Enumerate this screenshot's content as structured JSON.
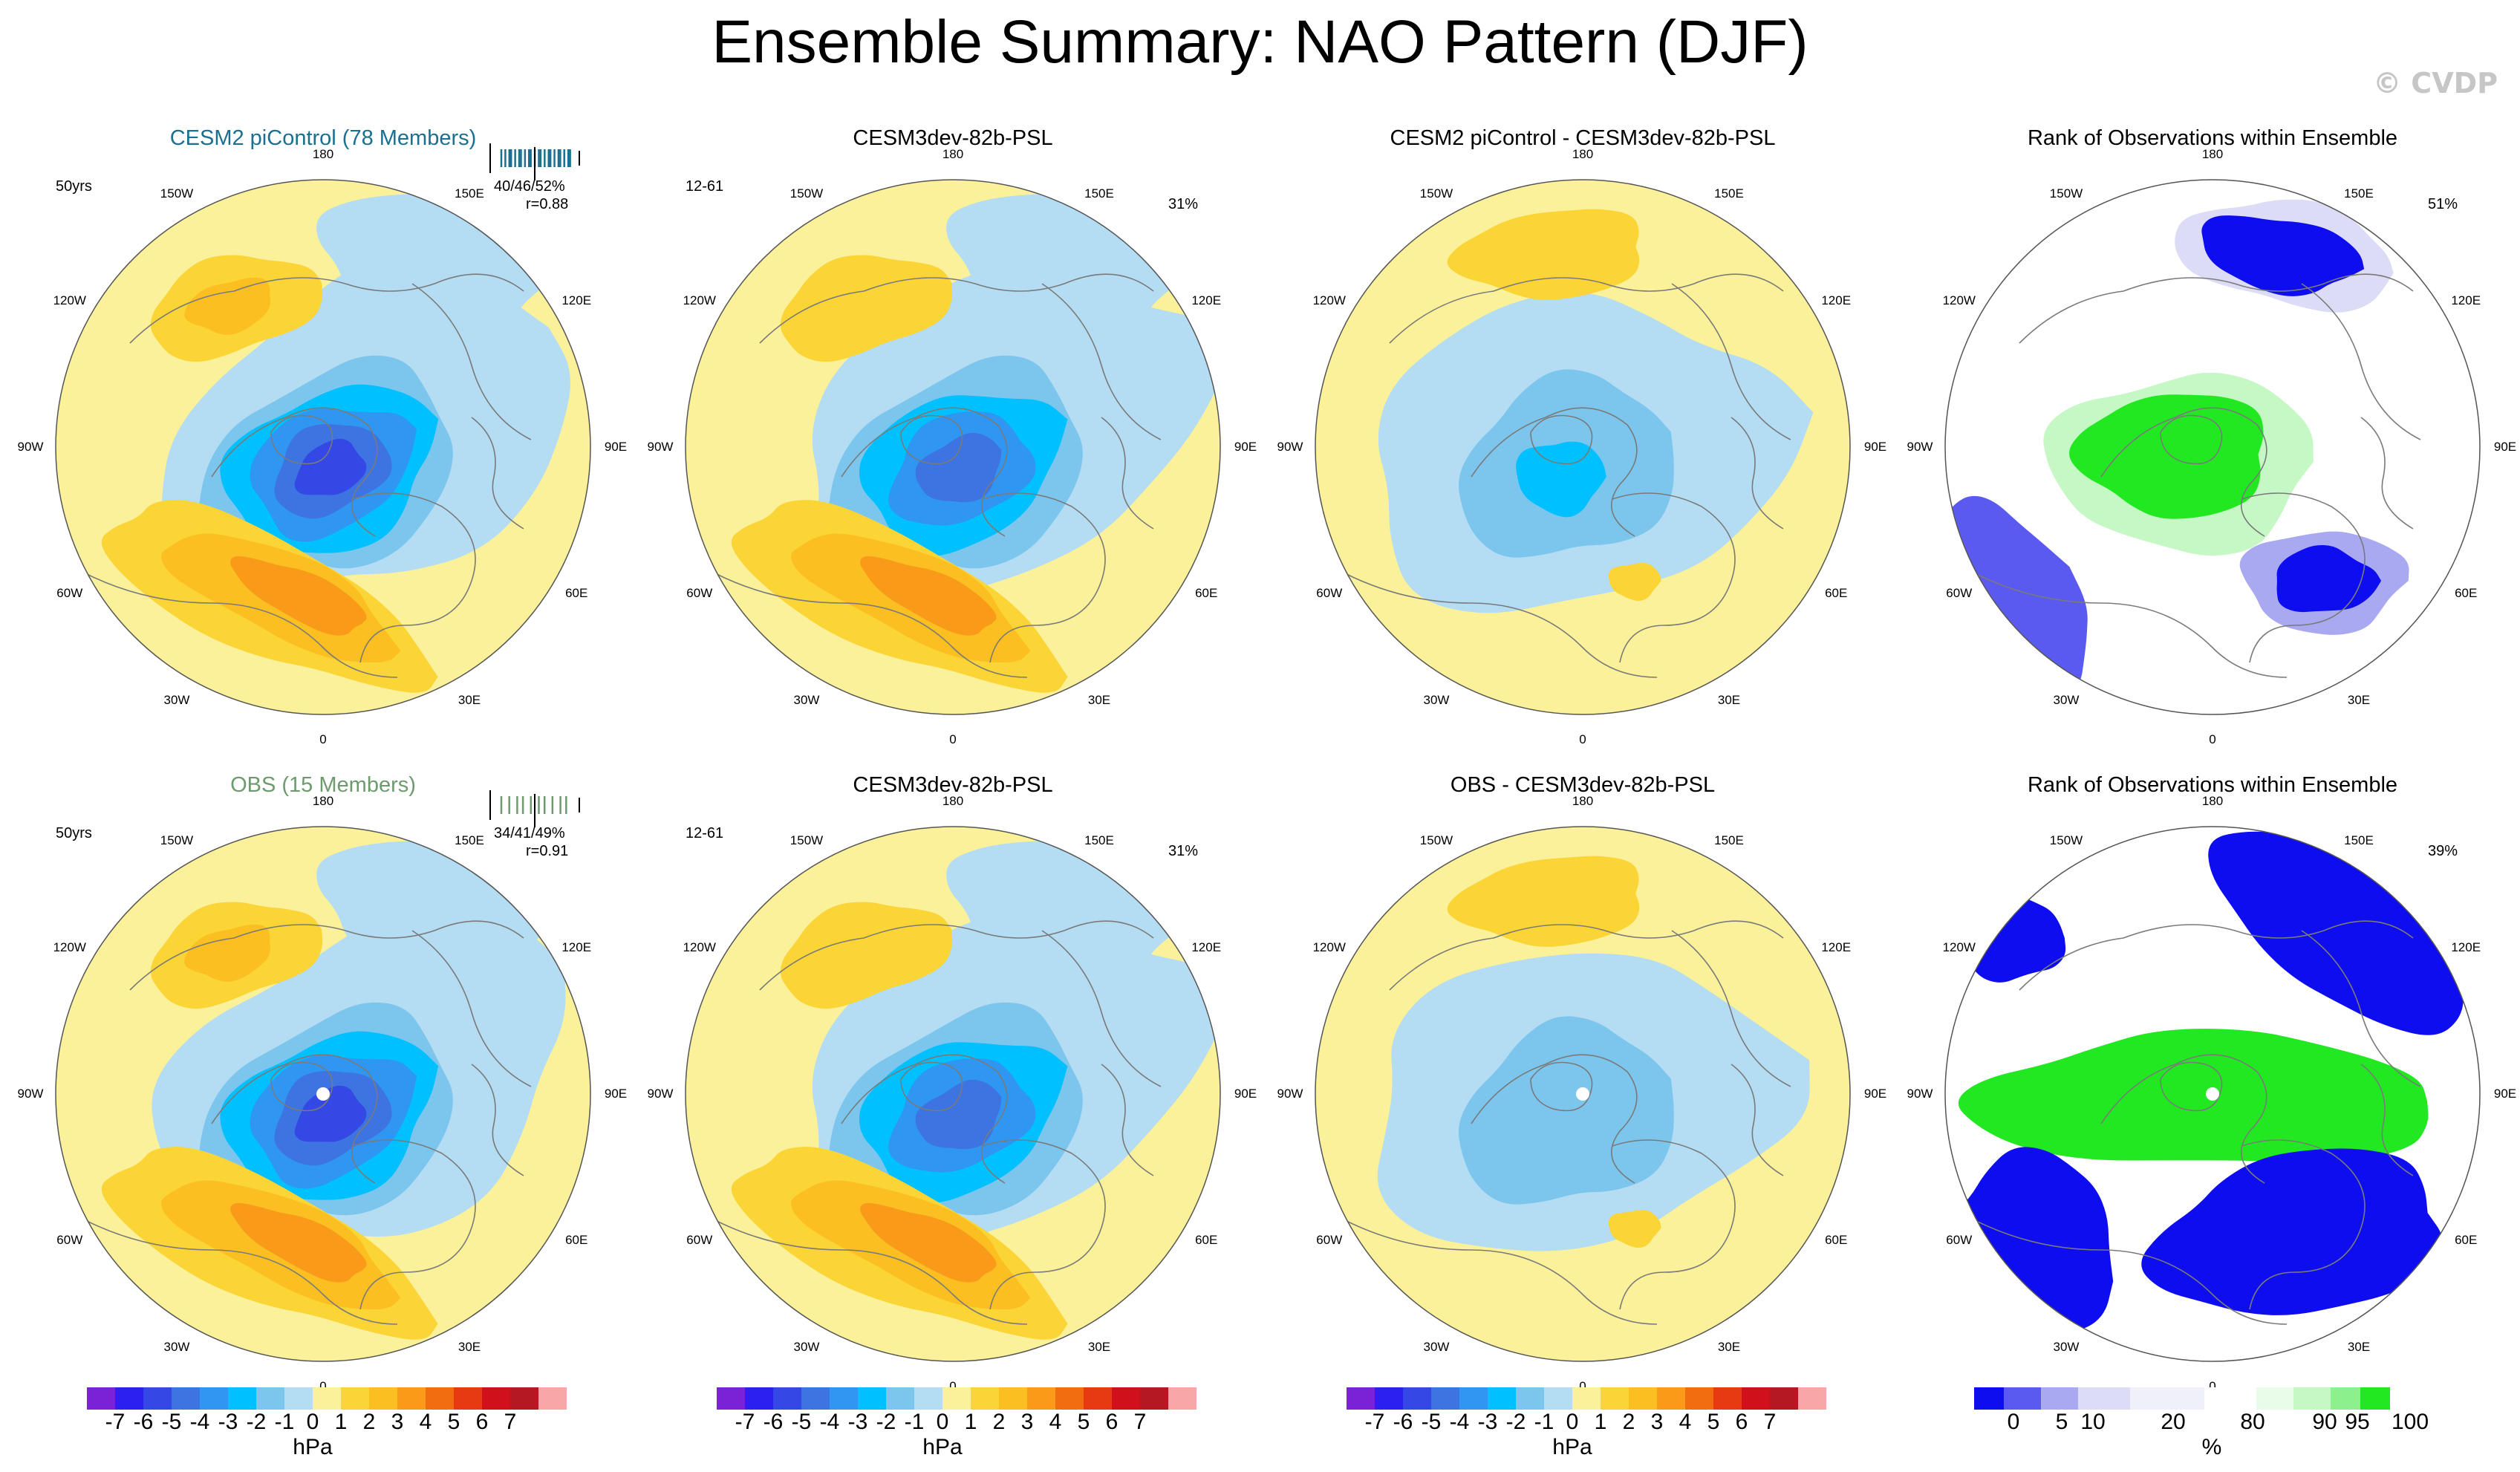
{
  "title": "Ensemble Summary: NAO Pattern (DJF)",
  "credit": "© CVDP",
  "colors": {
    "obs_title": "#6e9b6e",
    "model_title": "#1b6f8f",
    "pressure_scale": [
      "#7c22d6",
      "#2c20f0",
      "#3448e6",
      "#3d74e2",
      "#2f97f2",
      "#00c0ff",
      "#7cc6ee",
      "#b4dcf2",
      "#fbf19a",
      "#fbd435",
      "#fbbf22",
      "#f99a19",
      "#f26c10",
      "#e83a12",
      "#d0101a",
      "#b51723",
      "#f7a7a8"
    ],
    "rank_scale": [
      "#0d0df0",
      "#5a5af0",
      "#a9a9f2",
      "#dcdcf6",
      "#f0f0fb",
      "#ffffff",
      "#e9fbe9",
      "#c6f8c6",
      "#8cf08c",
      "#21e821"
    ]
  },
  "icon": "credit-copyright-icon",
  "colorbar_labels": [
    "-7",
    "-6",
    "-5",
    "-4",
    "-3",
    "-2",
    "-1",
    "0",
    "1",
    "2",
    "3",
    "4",
    "5",
    "6",
    "7"
  ],
  "colorbar_unit": "hPa",
  "rank_labels": [
    "0",
    "5",
    "10",
    "20",
    "80",
    "90",
    "95",
    "100"
  ],
  "rank_unit": "%",
  "lon_labels": [
    "180",
    "150E",
    "120E",
    "90E",
    "60E",
    "30E",
    "0",
    "30W",
    "60W",
    "90W",
    "120W",
    "150W"
  ],
  "panels": [
    {
      "id": "r1c1",
      "title": "CESM2 piControl (78 Members)",
      "title_color": "model",
      "left_note": "50yrs",
      "right_note": "",
      "stats": "40/46/52%",
      "r_value": "r=0.88",
      "bars": "model",
      "kind": "pattern",
      "strength": 1.0,
      "obs_dot": false
    },
    {
      "id": "r1c2",
      "title": "CESM3dev-82b-PSL",
      "title_color": "black",
      "left_note": "12-61",
      "right_note": "31%",
      "stats": "",
      "r_value": "",
      "bars": "",
      "kind": "pattern",
      "strength": 0.85,
      "obs_dot": false
    },
    {
      "id": "r1c3",
      "title": "CESM2 piControl - CESM3dev-82b-PSL",
      "title_color": "black",
      "left_note": "",
      "right_note": "",
      "stats": "",
      "r_value": "",
      "bars": "",
      "kind": "difference",
      "strength": 0.6,
      "obs_dot": false
    },
    {
      "id": "r1c4",
      "title": "Rank of Observations within Ensemble",
      "title_color": "black",
      "left_note": "",
      "right_note": "51%",
      "stats": "",
      "r_value": "",
      "bars": "",
      "kind": "rank1",
      "strength": 1.0,
      "obs_dot": false
    },
    {
      "id": "r2c1",
      "title": "OBS (15 Members)",
      "title_color": "obs",
      "left_note": "50yrs",
      "right_note": "",
      "stats": "34/41/49%",
      "r_value": "r=0.91",
      "bars": "obs",
      "kind": "pattern",
      "strength": 0.95,
      "obs_dot": true
    },
    {
      "id": "r2c2",
      "title": "CESM3dev-82b-PSL",
      "title_color": "black",
      "left_note": "12-61",
      "right_note": "31%",
      "stats": "",
      "r_value": "",
      "bars": "",
      "kind": "pattern",
      "strength": 0.85,
      "obs_dot": false
    },
    {
      "id": "r2c3",
      "title": "OBS - CESM3dev-82b-PSL",
      "title_color": "black",
      "left_note": "",
      "right_note": "",
      "stats": "",
      "r_value": "",
      "bars": "",
      "kind": "difference2",
      "strength": 0.5,
      "obs_dot": true
    },
    {
      "id": "r2c4",
      "title": "Rank of Observations within Ensemble",
      "title_color": "black",
      "left_note": "",
      "right_note": "39%",
      "stats": "",
      "r_value": "",
      "bars": "",
      "kind": "rank2",
      "strength": 1.0,
      "obs_dot": true
    }
  ],
  "chart_data": [
    {
      "type": "heatmap",
      "title": "CESM2 piControl (78 Members)",
      "projection": "north polar stereographic",
      "variable": "NAO pattern (sea level pressure)",
      "units": "hPa",
      "levels": [
        -7,
        -6,
        -5,
        -4,
        -3,
        -2,
        -1,
        0,
        1,
        2,
        3,
        4,
        5,
        6,
        7
      ],
      "period": "50yrs",
      "pct_variance_range": "40/46/52%",
      "pattern_correlation": 0.88,
      "center_min_hPa": -6,
      "atlantic_max_hPa": 3
    },
    {
      "type": "heatmap",
      "title": "CESM3dev-82b-PSL",
      "period": "12-61",
      "pct_variance": "31%",
      "units": "hPa",
      "center_min_hPa": -5,
      "atlantic_max_hPa": 5
    },
    {
      "type": "heatmap",
      "title": "CESM2 piControl - CESM3dev-82b-PSL",
      "units": "hPa",
      "center_min_hPa": -3,
      "pacific_max_hPa": 2
    },
    {
      "type": "heatmap",
      "title": "Rank of Observations within Ensemble",
      "units": "%",
      "rank_levels": [
        0,
        5,
        10,
        20,
        80,
        90,
        95,
        100
      ],
      "pct_area": "51%"
    },
    {
      "type": "heatmap",
      "title": "OBS (15 Members)",
      "period": "50yrs",
      "pct_variance_range": "34/41/49%",
      "pattern_correlation": 0.91,
      "units": "hPa",
      "center_min_hPa": -5,
      "atlantic_max_hPa": 4
    },
    {
      "type": "heatmap",
      "title": "CESM3dev-82b-PSL",
      "period": "12-61",
      "pct_variance": "31%",
      "units": "hPa",
      "center_min_hPa": -5,
      "atlantic_max_hPa": 5
    },
    {
      "type": "heatmap",
      "title": "OBS - CESM3dev-82b-PSL",
      "units": "hPa",
      "center_min_hPa": -2,
      "europe_max_hPa": 1
    },
    {
      "type": "heatmap",
      "title": "Rank of Observations within Ensemble",
      "units": "%",
      "rank_levels": [
        0,
        5,
        10,
        20,
        80,
        90,
        95,
        100
      ],
      "pct_area": "39%"
    }
  ]
}
